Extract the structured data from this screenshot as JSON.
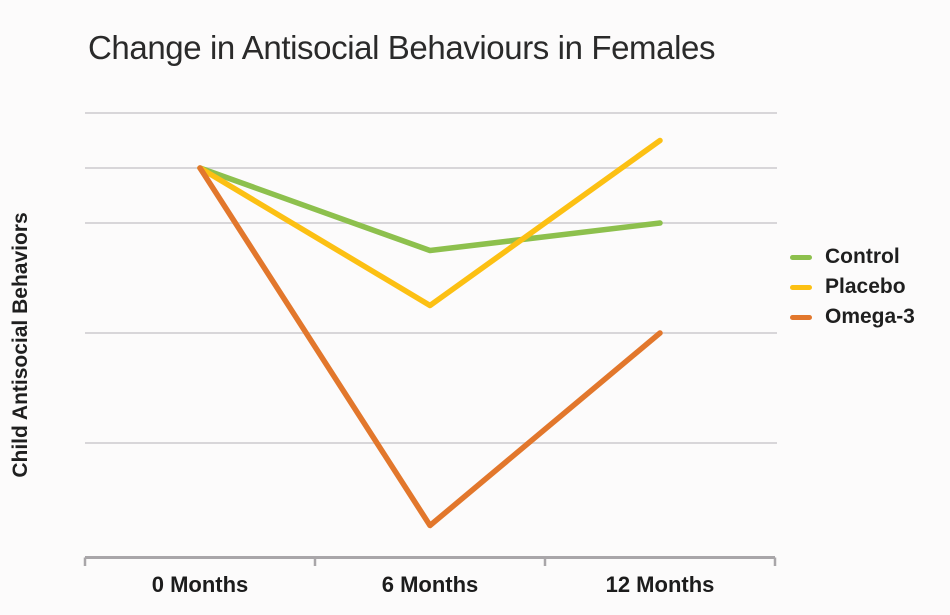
{
  "chart_data": {
    "type": "line",
    "title": "Change in Antisocial Behaviours in Females",
    "ylabel": "Child Antisocial Behaviors",
    "xlabel": "",
    "categories": [
      "0 Months",
      "6 Months",
      "12 Months"
    ],
    "series": [
      {
        "name": "Control",
        "color": "#8dc04d",
        "values": [
          7.0,
          5.5,
          6.0
        ]
      },
      {
        "name": "Placebo",
        "color": "#fcc013",
        "values": [
          7.0,
          4.5,
          7.5
        ]
      },
      {
        "name": "Omega-3",
        "color": "#e2772c",
        "values": [
          7.0,
          0.5,
          4.0
        ]
      }
    ],
    "ylim": [
      0,
      8.25
    ],
    "y_tick_labels_shown": false,
    "gridlines_y": [
      8,
      7,
      6,
      4,
      2
    ],
    "grid": true,
    "legend_position": "right",
    "colors": {
      "gridline": "#d8d6d9",
      "axis": "#a9a6a9",
      "text": "#262626",
      "background": "#fcfbfb"
    }
  }
}
